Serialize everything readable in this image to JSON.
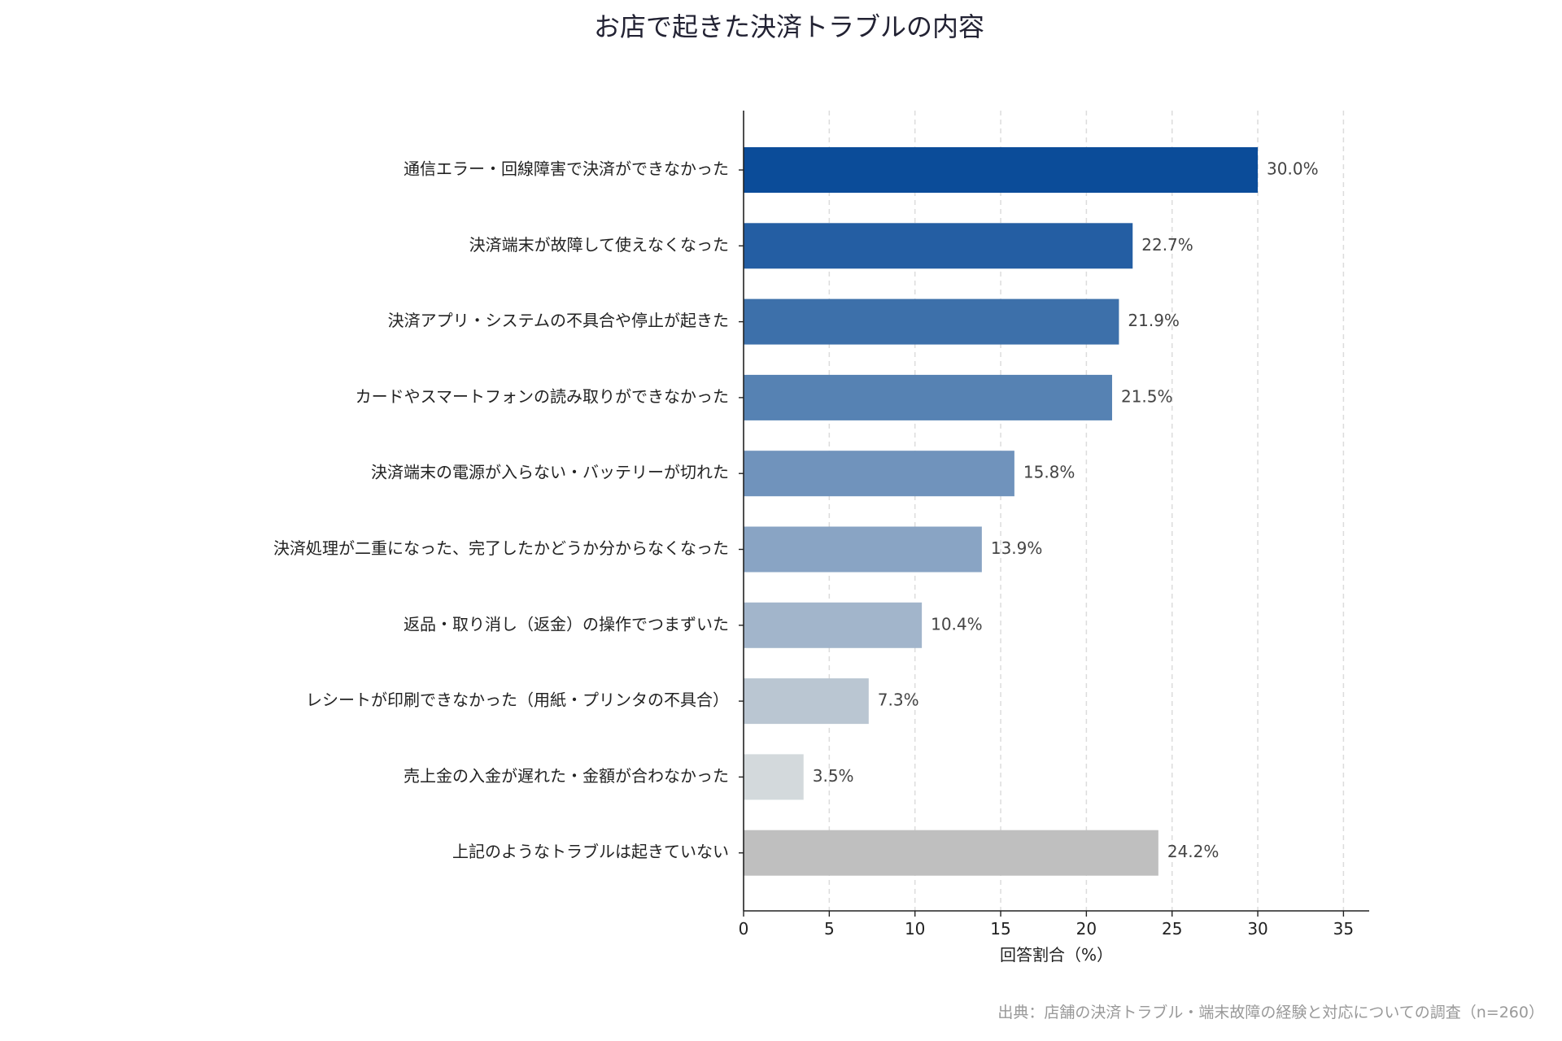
{
  "chart_data": {
    "type": "bar",
    "orientation": "horizontal",
    "title": "お店で起きた決済トラブルの内容",
    "xlabel": "回答割合（%）",
    "ylabel": "",
    "xlim": [
      0,
      36.5
    ],
    "xticks": [
      0,
      5,
      10,
      15,
      20,
      25,
      30,
      35
    ],
    "grid": "vertical dashed",
    "value_suffix": "%",
    "categories": [
      "通信エラー・回線障害で決済ができなかった",
      "決済端末が故障して使えなくなった",
      "決済アプリ・システムの不具合や停止が起きた",
      "カードやスマートフォンの読み取りができなかった",
      "決済端末の電源が入らない・バッテリーが切れた",
      "決済処理が二重になった、完了したかどうか分からなくなった",
      "返品・取り消し（返金）の操作でつまずいた",
      "レシートが印刷できなかった（用紙・プリンタの不具合）",
      "売上金の入金が遅れた・金額が合わなかった",
      "上記のようなトラブルは起きていない"
    ],
    "values": [
      30.0,
      22.7,
      21.9,
      21.5,
      15.8,
      13.9,
      10.4,
      7.3,
      3.5,
      24.2
    ],
    "colors": [
      "#0b4c99",
      "#245ea3",
      "#3d70aa",
      "#5682b3",
      "#7093bc",
      "#89a4c4",
      "#a2b5cb",
      "#bac6d2",
      "#d3d9dc",
      "#bfbfbf"
    ]
  },
  "source": "出典：店舗の決済トラブル・端末故障の経験と対応についての調査（n=260）"
}
